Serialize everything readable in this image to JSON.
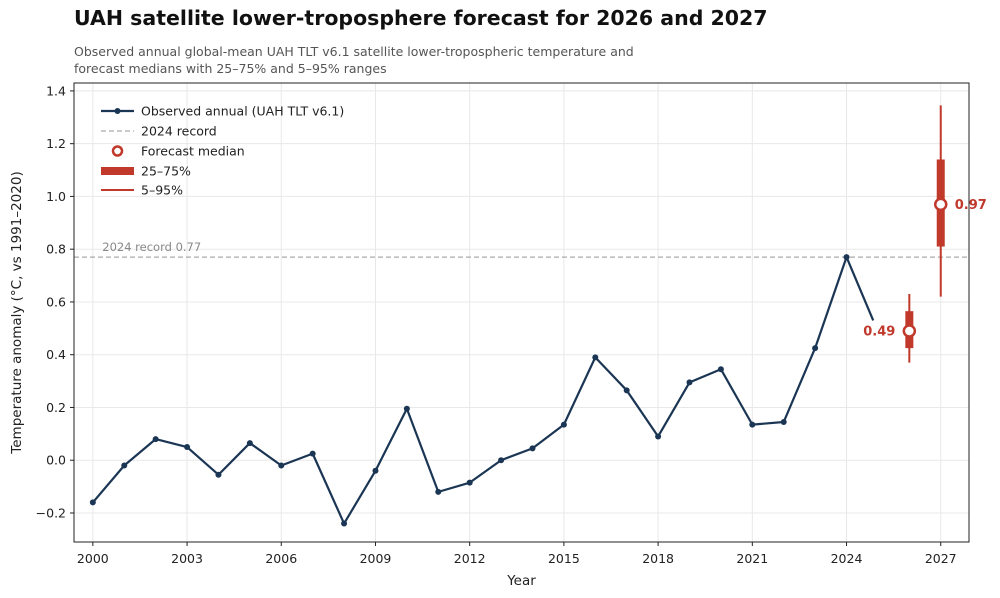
{
  "title": "UAH satellite lower-troposphere forecast for 2026 and 2027",
  "subtitle_line1": "Observed annual global-mean UAH TLT v6.1 satellite lower-tropospheric temperature and",
  "subtitle_line2": "forecast medians with 25–75% and 5–95% ranges",
  "colors": {
    "observed": "#1b3654",
    "forecast": "#c0392b",
    "record": "#aaaaaa",
    "grid": "#e8e8e8"
  },
  "chart_data": {
    "type": "line",
    "xlabel": "Year",
    "ylabel": "Temperature anomaly (°C, vs 1991–2020)",
    "xlim": [
      1999.4,
      2027.9
    ],
    "ylim": [
      -0.31,
      1.43
    ],
    "xticks": [
      2000,
      2003,
      2006,
      2009,
      2012,
      2015,
      2018,
      2021,
      2024,
      2027
    ],
    "yticks": [
      -0.2,
      0.0,
      0.2,
      0.4,
      0.6,
      0.8,
      1.0,
      1.2,
      1.4
    ],
    "ytick_labels": [
      "−0.2",
      "0.0",
      "0.2",
      "0.4",
      "0.6",
      "0.8",
      "1.0",
      "1.2",
      "1.4"
    ],
    "grid": true,
    "legend_position": "top-left",
    "observed": {
      "name": "Observed annual (UAH TLT v6.1)",
      "x": [
        2000,
        2001,
        2002,
        2003,
        2004,
        2005,
        2006,
        2007,
        2008,
        2009,
        2010,
        2011,
        2012,
        2013,
        2014,
        2015,
        2016,
        2017,
        2018,
        2019,
        2020,
        2021,
        2022,
        2023,
        2024
      ],
      "y": [
        -0.16,
        -0.02,
        0.08,
        0.05,
        -0.055,
        0.065,
        -0.02,
        0.025,
        -0.24,
        -0.04,
        0.195,
        -0.12,
        -0.085,
        0.0,
        0.045,
        0.135,
        0.39,
        0.265,
        0.09,
        0.295,
        0.345,
        0.135,
        0.145,
        0.425,
        0.77
      ]
    },
    "record": {
      "name": "2024 record",
      "value": 0.77,
      "annotation": "2024 record 0.77"
    },
    "forecast": {
      "median_name": "Forecast median",
      "iqr_name": "25–75%",
      "range_name": "5–95%",
      "points": [
        {
          "year": 2026,
          "median": 0.49,
          "p25": 0.425,
          "p75": 0.565,
          "p5": 0.37,
          "p95": 0.63,
          "label": "0.49"
        },
        {
          "year": 2027,
          "median": 0.97,
          "p25": 0.81,
          "p75": 1.14,
          "p5": 0.62,
          "p95": 1.345,
          "label": "0.97"
        }
      ]
    }
  }
}
